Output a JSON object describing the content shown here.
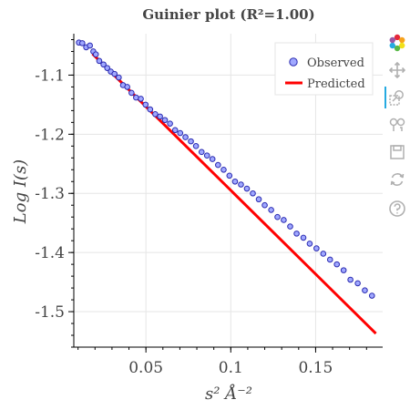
{
  "chart_data": {
    "type": "scatter",
    "title": "Guinier plot (R²=1.00)",
    "xlabel": "s² Å⁻²",
    "ylabel": "Log I(s)",
    "xlim": [
      0.0075,
      0.1895
    ],
    "ylim": [
      -1.56,
      -1.03
    ],
    "x_ticks": [
      0.05,
      0.1,
      0.15
    ],
    "x_tick_labels": [
      "0.05",
      "0.1",
      "0.15"
    ],
    "y_ticks": [
      -1.1,
      -1.2,
      -1.3,
      -1.4,
      -1.5
    ],
    "y_tick_labels": [
      "-1.1",
      "-1.2",
      "-1.3",
      "-1.4",
      "-1.5"
    ],
    "grid": true,
    "legend_position": "top-right",
    "series": [
      {
        "name": "Observed",
        "kind": "scatter",
        "color": "#a0a8ff",
        "x": [
          0.0105,
          0.0125,
          0.0148,
          0.017,
          0.019,
          0.0205,
          0.0225,
          0.025,
          0.0272,
          0.0293,
          0.0315,
          0.034,
          0.0365,
          0.039,
          0.0415,
          0.0442,
          0.047,
          0.0498,
          0.0525,
          0.0555,
          0.0583,
          0.0612,
          0.0642,
          0.0672,
          0.0702,
          0.0733,
          0.0765,
          0.0795,
          0.0828,
          0.086,
          0.0892,
          0.0925,
          0.0958,
          0.0992,
          0.1025,
          0.106,
          0.1095,
          0.113,
          0.1165,
          0.12,
          0.1238,
          0.1275,
          0.1312,
          0.135,
          0.1388,
          0.1428,
          0.1465,
          0.1505,
          0.1545,
          0.1585,
          0.1625,
          0.1665,
          0.1705,
          0.1748,
          0.179,
          0.1832
        ],
        "y": [
          -1.045,
          -1.046,
          -1.053,
          -1.05,
          -1.06,
          -1.065,
          -1.076,
          -1.082,
          -1.088,
          -1.094,
          -1.098,
          -1.104,
          -1.117,
          -1.12,
          -1.13,
          -1.138,
          -1.14,
          -1.15,
          -1.158,
          -1.166,
          -1.17,
          -1.176,
          -1.182,
          -1.193,
          -1.198,
          -1.205,
          -1.212,
          -1.22,
          -1.23,
          -1.236,
          -1.242,
          -1.252,
          -1.26,
          -1.27,
          -1.28,
          -1.285,
          -1.292,
          -1.3,
          -1.31,
          -1.32,
          -1.328,
          -1.34,
          -1.345,
          -1.356,
          -1.368,
          -1.375,
          -1.385,
          -1.393,
          -1.402,
          -1.412,
          -1.42,
          -1.43,
          -1.446,
          -1.452,
          -1.464,
          -1.473
        ]
      },
      {
        "name": "Predicted",
        "kind": "line",
        "color": "#ff0000",
        "x": [
          0.0185,
          0.1855
        ],
        "y": [
          -1.064,
          -1.537
        ]
      }
    ]
  },
  "toolbar": {
    "tools": [
      "bokeh-logo-icon",
      "pan-icon",
      "box-zoom-icon",
      "wheel-zoom-icon",
      "save-icon",
      "reset-icon",
      "help-icon"
    ]
  }
}
